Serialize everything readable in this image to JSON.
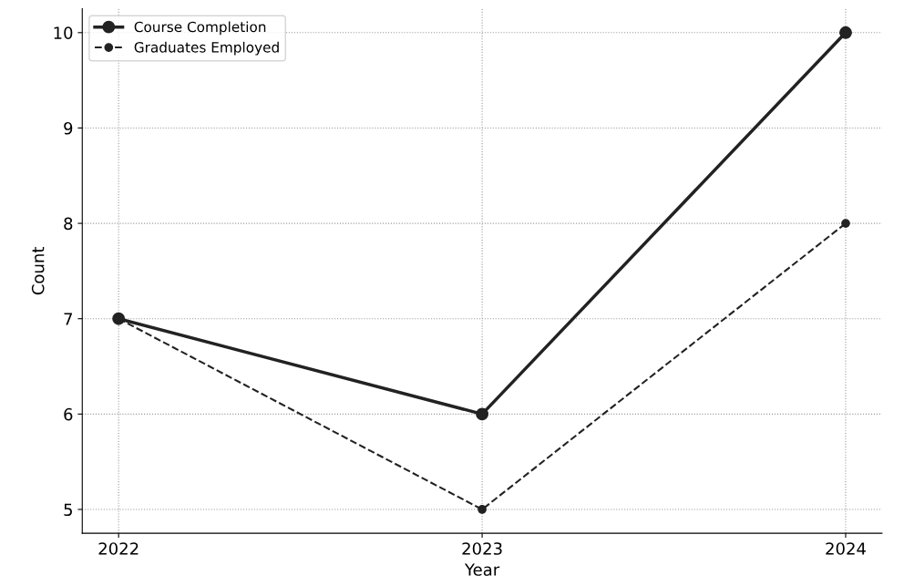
{
  "chart_data": {
    "type": "line",
    "xlabel": "Year",
    "ylabel": "Count",
    "x": [
      2022,
      2023,
      2024
    ],
    "series": [
      {
        "name": "Course Completion",
        "color": "#222222",
        "values": [
          7,
          6,
          10
        ],
        "line_style": "solid"
      },
      {
        "name": "Graduates Employed",
        "color": "#222222",
        "values": [
          7,
          5,
          8
        ],
        "line_style": "dashed"
      }
    ],
    "xlim": [
      2021.9,
      2024.1
    ],
    "xticks": [
      2022,
      2023,
      2024
    ],
    "ylim": [
      4.75,
      10.25
    ],
    "yticks": [
      5,
      6,
      7,
      8,
      9,
      10
    ],
    "grid": true,
    "legend": "top left",
    "marker": "circle"
  }
}
